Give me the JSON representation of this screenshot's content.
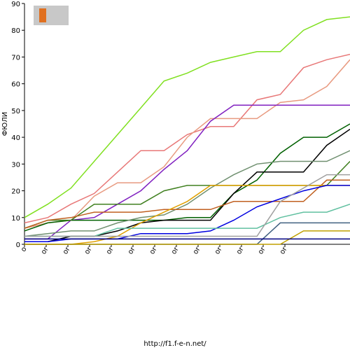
{
  "chart_data": {
    "type": "line",
    "ylabel": "ФЮЛИ",
    "footer": "http://f1.f-e-n.net/",
    "categories": [
      "о",
      "or",
      "or",
      "or",
      "or",
      "or",
      "or",
      "or",
      "or",
      "or",
      "or",
      "or",
      "or",
      null,
      null
    ],
    "ylim": [
      0,
      90
    ],
    "yticks": [
      0,
      10,
      20,
      30,
      40,
      50,
      60,
      70,
      80,
      90
    ],
    "series": [
      {
        "color": "#80e020",
        "values": [
          10,
          15,
          21,
          31,
          41,
          51,
          61,
          64,
          68,
          70,
          72,
          72,
          80,
          84,
          85
        ]
      },
      {
        "color": "#e87878",
        "values": [
          8,
          10,
          15,
          19,
          27,
          35,
          35,
          41,
          44,
          44,
          54,
          56,
          66,
          69,
          71
        ]
      },
      {
        "color": "#e89a80",
        "values": [
          6,
          8,
          9,
          18,
          23,
          23,
          29,
          40,
          47,
          47,
          47,
          53,
          54,
          59,
          69
        ]
      },
      {
        "color": "#8020c0",
        "values": [
          2,
          2,
          9,
          10,
          15,
          20,
          28,
          35,
          46,
          52,
          52,
          52,
          52,
          52,
          52
        ]
      },
      {
        "color": "#006000",
        "values": [
          5,
          8,
          9,
          9,
          9,
          9,
          9,
          10,
          10,
          19,
          24,
          34,
          40,
          40,
          45
        ]
      },
      {
        "color": "#000000",
        "values": [
          1,
          1,
          3,
          3,
          5,
          8,
          9,
          9,
          9,
          19,
          27,
          27,
          27,
          37,
          43
        ]
      },
      {
        "color": "#709070",
        "values": [
          3,
          4,
          5,
          5,
          8,
          10,
          11,
          15,
          21,
          26,
          30,
          31,
          31,
          31,
          35
        ]
      },
      {
        "color": "#408020",
        "values": [
          6,
          9,
          9,
          15,
          15,
          15,
          20,
          22,
          22,
          22,
          22,
          22,
          22,
          22,
          31
        ]
      },
      {
        "color": "#c06020",
        "values": [
          6,
          9,
          10,
          12,
          12,
          12,
          13,
          13,
          13,
          16,
          16,
          16,
          16,
          24,
          24
        ]
      },
      {
        "color": "#e0a000",
        "values": [
          0,
          0,
          0,
          1,
          3,
          8,
          12,
          16,
          22,
          22,
          22,
          22,
          22,
          22,
          22
        ]
      },
      {
        "color": "#0000e0",
        "values": [
          1,
          1,
          2,
          2,
          2,
          4,
          4,
          4,
          5,
          9,
          14,
          17,
          20,
          22,
          22
        ]
      },
      {
        "color": "#60c0a0",
        "values": [
          3,
          3,
          3,
          3,
          6,
          6,
          6,
          6,
          6,
          6,
          6,
          10,
          12,
          12,
          15
        ]
      },
      {
        "color": "#406080",
        "values": [
          0,
          0,
          0,
          0,
          0,
          0,
          0,
          0,
          0,
          0,
          0,
          8,
          8,
          8,
          8
        ]
      },
      {
        "color": "#a0a0a0",
        "values": [
          3,
          3,
          3,
          3,
          3,
          3,
          3,
          3,
          3,
          3,
          3,
          16,
          21,
          26,
          26
        ]
      },
      {
        "color": "#c0a000",
        "values": [
          0,
          0,
          0,
          0,
          0,
          0,
          0,
          0,
          0,
          0,
          0,
          0,
          5,
          5,
          5
        ]
      },
      {
        "color": "#000080",
        "values": [
          2,
          2,
          2,
          2,
          2,
          2,
          2,
          2,
          2,
          2,
          2,
          2,
          2,
          2,
          2
        ]
      }
    ]
  }
}
